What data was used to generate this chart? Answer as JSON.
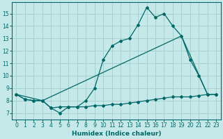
{
  "xlabel": "Humidex (Indice chaleur)",
  "bg_color": "#c5e8e8",
  "line_color": "#006868",
  "grid_color": "#a8d0d0",
  "xlim": [
    -0.5,
    23.5
  ],
  "ylim": [
    6.5,
    15.9
  ],
  "yticks": [
    7,
    8,
    9,
    10,
    11,
    12,
    13,
    14,
    15
  ],
  "xticks": [
    0,
    1,
    2,
    3,
    4,
    5,
    6,
    7,
    8,
    9,
    10,
    11,
    12,
    13,
    14,
    15,
    16,
    17,
    18,
    19,
    20,
    21,
    22,
    23
  ],
  "line1_x": [
    0,
    1,
    2,
    3,
    4,
    5,
    6,
    7,
    8,
    9,
    10,
    11,
    12,
    13,
    14,
    15,
    16,
    17,
    18,
    19,
    20,
    21,
    22,
    23
  ],
  "line1_y": [
    8.5,
    8.1,
    8.0,
    8.0,
    7.4,
    7.0,
    7.5,
    7.5,
    8.0,
    9.0,
    11.3,
    12.4,
    12.8,
    13.0,
    14.1,
    15.5,
    14.7,
    15.0,
    14.0,
    13.2,
    11.3,
    10.0,
    8.5,
    8.5
  ],
  "line2_x": [
    0,
    3,
    19,
    22
  ],
  "line2_y": [
    8.5,
    8.0,
    13.2,
    8.5
  ],
  "line3_x": [
    0,
    1,
    2,
    3,
    4,
    5,
    6,
    7,
    8,
    9,
    10,
    11,
    12,
    13,
    14,
    15,
    16,
    17,
    18,
    19,
    20,
    21,
    22,
    23
  ],
  "line3_y": [
    8.5,
    8.1,
    8.0,
    8.0,
    7.4,
    7.5,
    7.5,
    7.5,
    7.5,
    7.6,
    7.6,
    7.7,
    7.7,
    7.8,
    7.9,
    8.0,
    8.1,
    8.2,
    8.3,
    8.3,
    8.3,
    8.4,
    8.5,
    8.5
  ]
}
